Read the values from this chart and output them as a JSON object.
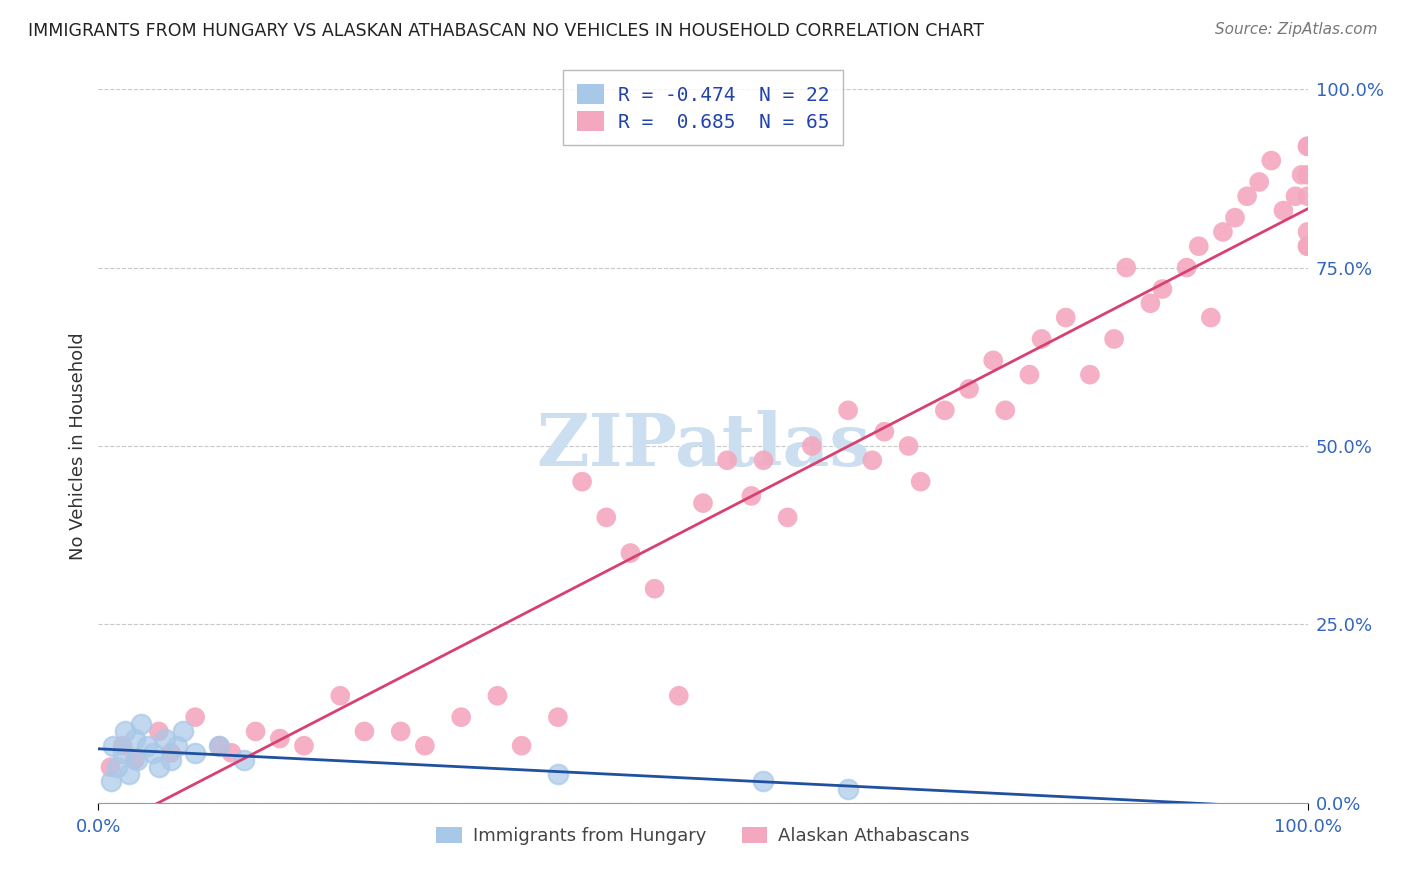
{
  "title": "IMMIGRANTS FROM HUNGARY VS ALASKAN ATHABASCAN NO VEHICLES IN HOUSEHOLD CORRELATION CHART",
  "source": "Source: ZipAtlas.com",
  "ylabel": "No Vehicles in Household",
  "xlim": [
    0,
    100
  ],
  "ylim": [
    0,
    100
  ],
  "ytick_labels": [
    "0.0%",
    "25.0%",
    "50.0%",
    "75.0%",
    "100.0%"
  ],
  "ytick_positions": [
    0,
    25,
    50,
    75,
    100
  ],
  "blue_legend_label": "R = -0.474  N = 22",
  "pink_legend_label": "R =  0.685  N = 65",
  "bottom_legend": [
    "Immigrants from Hungary",
    "Alaskan Athabascans"
  ],
  "blue_color": "#a8c8e8",
  "pink_color": "#f4a8c0",
  "blue_line_color": "#2050a0",
  "pink_line_color": "#d84070",
  "watermark_color": "#ccdff0",
  "background_color": "#ffffff",
  "grid_color": "#c8c8c8",
  "blue_scatter_x": [
    1.0,
    1.2,
    1.5,
    2.0,
    2.2,
    2.5,
    3.0,
    3.2,
    3.5,
    4.0,
    4.5,
    5.0,
    5.5,
    6.0,
    6.5,
    7.0,
    8.0,
    10.0,
    12.0,
    38.0,
    55.0,
    62.0
  ],
  "blue_scatter_y": [
    3.0,
    8.0,
    5.0,
    7.0,
    10.0,
    4.0,
    9.0,
    6.0,
    11.0,
    8.0,
    7.0,
    5.0,
    9.0,
    6.0,
    8.0,
    10.0,
    7.0,
    8.0,
    6.0,
    4.0,
    3.0,
    2.0
  ],
  "pink_scatter_x": [
    1.0,
    2.0,
    3.0,
    5.0,
    6.0,
    8.0,
    10.0,
    11.0,
    13.0,
    15.0,
    17.0,
    20.0,
    22.0,
    25.0,
    27.0,
    30.0,
    33.0,
    35.0,
    38.0,
    40.0,
    42.0,
    44.0,
    46.0,
    48.0,
    50.0,
    52.0,
    54.0,
    55.0,
    57.0,
    59.0,
    62.0,
    64.0,
    65.0,
    67.0,
    68.0,
    70.0,
    72.0,
    74.0,
    75.0,
    77.0,
    78.0,
    80.0,
    82.0,
    84.0,
    85.0,
    87.0,
    88.0,
    90.0,
    91.0,
    92.0,
    93.0,
    94.0,
    95.0,
    96.0,
    97.0,
    98.0,
    99.0,
    99.5,
    100.0,
    100.0,
    100.0,
    100.0,
    100.0,
    100.0,
    100.0
  ],
  "pink_scatter_y": [
    5.0,
    8.0,
    6.0,
    10.0,
    7.0,
    12.0,
    8.0,
    7.0,
    10.0,
    9.0,
    8.0,
    15.0,
    10.0,
    10.0,
    8.0,
    12.0,
    15.0,
    8.0,
    12.0,
    45.0,
    40.0,
    35.0,
    30.0,
    15.0,
    42.0,
    48.0,
    43.0,
    48.0,
    40.0,
    50.0,
    55.0,
    48.0,
    52.0,
    50.0,
    45.0,
    55.0,
    58.0,
    62.0,
    55.0,
    60.0,
    65.0,
    68.0,
    60.0,
    65.0,
    75.0,
    70.0,
    72.0,
    75.0,
    78.0,
    68.0,
    80.0,
    82.0,
    85.0,
    87.0,
    90.0,
    83.0,
    85.0,
    88.0,
    92.0,
    78.0,
    88.0,
    85.0,
    92.0,
    80.0,
    78.0
  ]
}
